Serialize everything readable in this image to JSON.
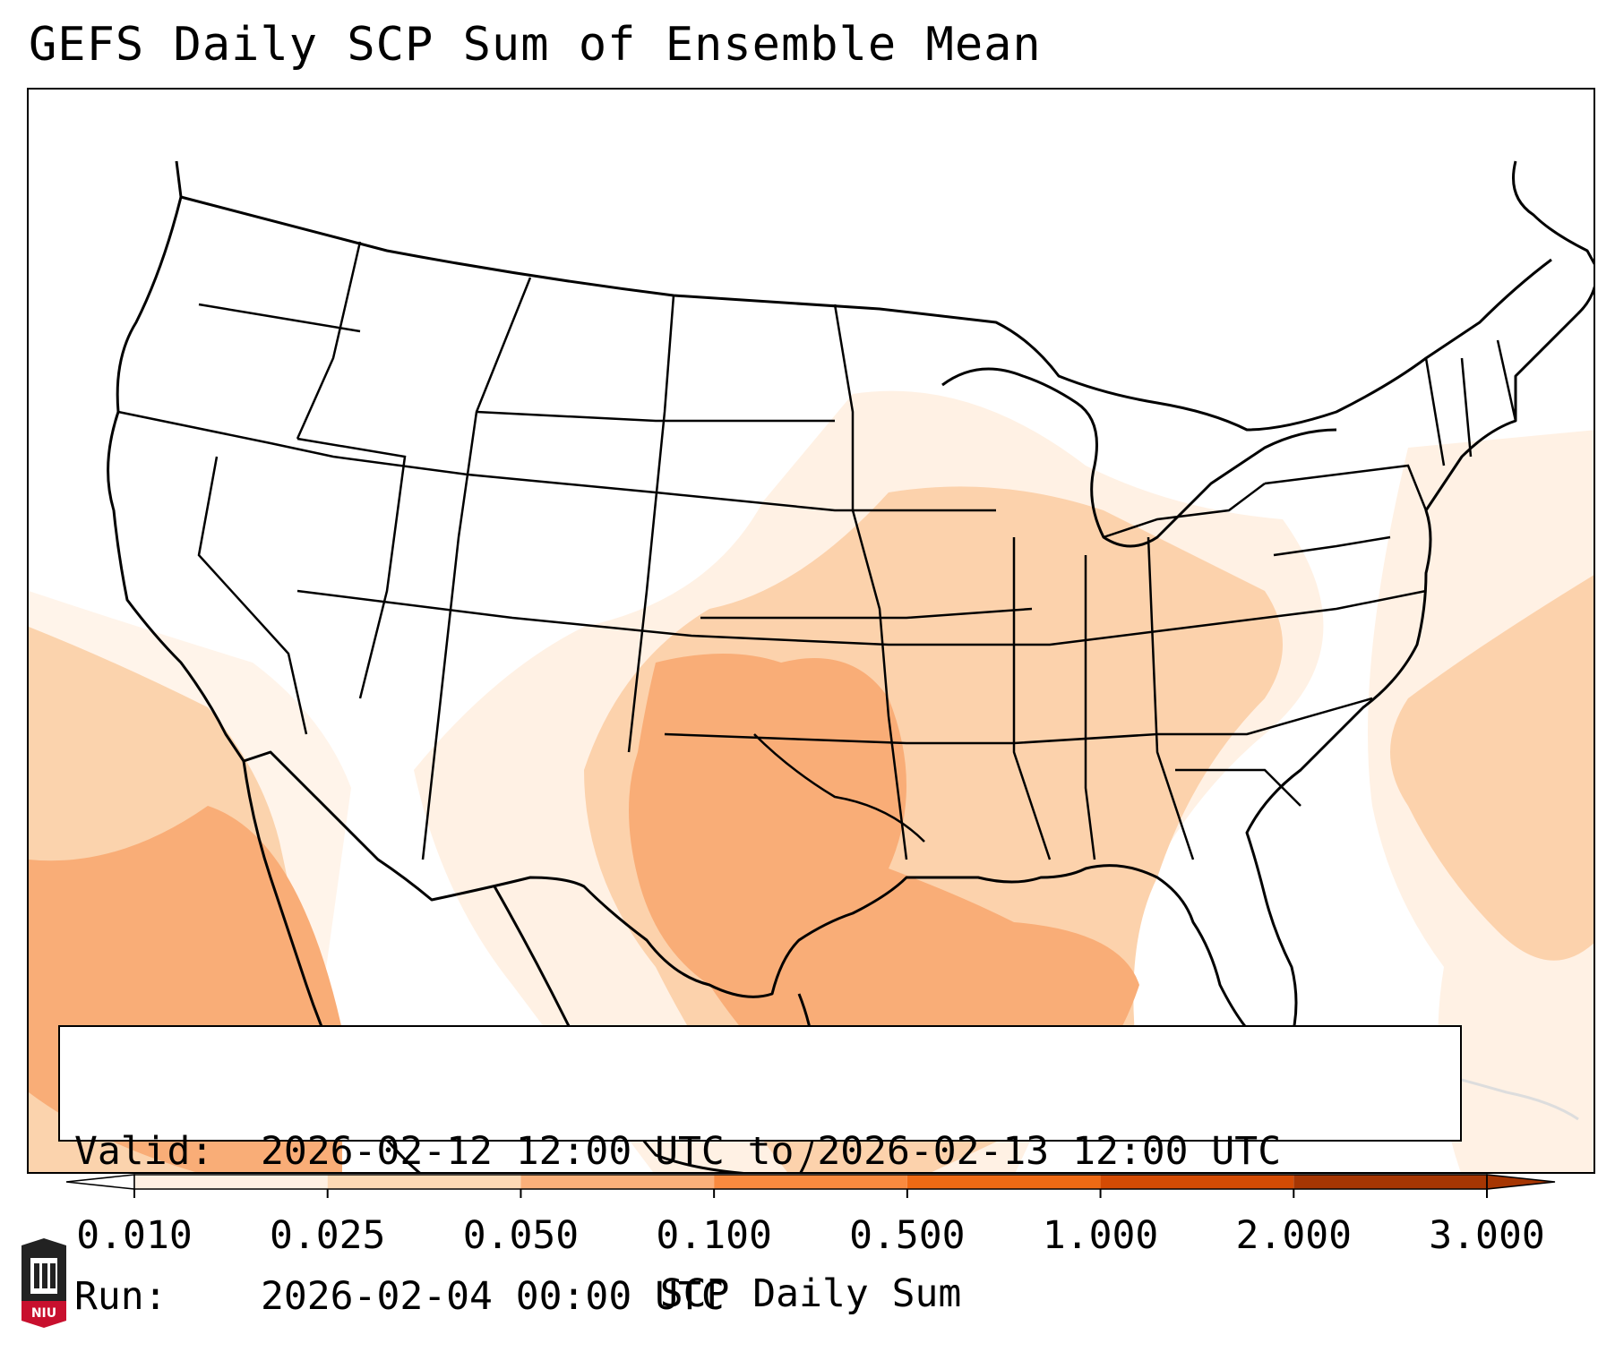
{
  "title": "GEFS Daily SCP Sum of Ensemble Mean",
  "info": {
    "valid_key": "Valid:",
    "valid_value": "2026-02-12 12:00 UTC to 2026-02-13 12:00 UTC",
    "run_key": "Run:",
    "run_value": "2026-02-04 00:00 UTC"
  },
  "colorbar": {
    "label": "SCP Daily Sum",
    "ticks": [
      "0.010",
      "0.025",
      "0.050",
      "0.100",
      "0.500",
      "1.000",
      "2.000",
      "3.000"
    ],
    "colors": [
      "#ffffff",
      "#fff0e3",
      "#fdd9b5",
      "#fbb07a",
      "#f98a3f",
      "#ef6a14",
      "#d44b04",
      "#a63603"
    ],
    "extend": "both"
  },
  "logo": {
    "text": "NIU"
  },
  "colors": {
    "frame": "#000000",
    "boundary": "#000000"
  }
}
